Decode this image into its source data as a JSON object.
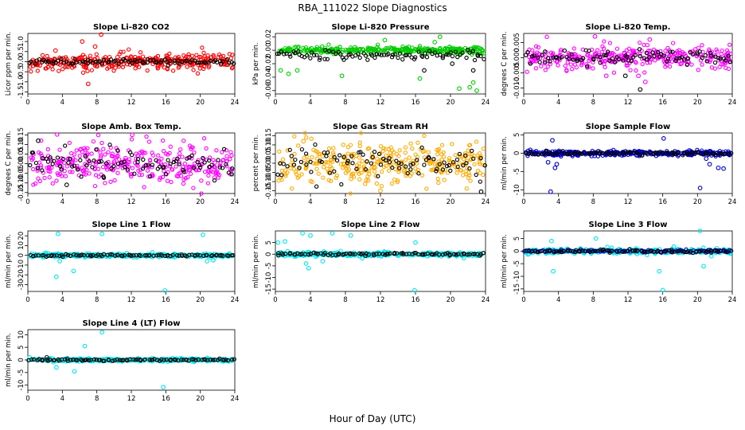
{
  "figure": {
    "title": "RBA_111022  Slope Diagnostics",
    "xlabel": "Hour of Day (UTC)"
  },
  "chart_data": [
    {
      "type": "scatter",
      "title": "Slope Li-820 CO2",
      "ylabel": "Licor ppm per min.",
      "xlim": [
        0,
        24
      ],
      "ylim": [
        -1.6,
        1.4
      ],
      "xticks": [
        0,
        4,
        8,
        12,
        16,
        20,
        24
      ],
      "yticks": [
        -1.5,
        -1.0,
        -0.5,
        0.0,
        0.5,
        1.0
      ],
      "ytick_labels": [
        "-1.5",
        "-1.0",
        "-0.5",
        "0.0",
        "0.5",
        "1.0"
      ],
      "series": [
        {
          "color": "#ff0000",
          "spread": 0.35,
          "center": 0.0,
          "outliers": [
            [
              6.3,
              1.0
            ],
            [
              7.0,
              -1.1
            ],
            [
              8.5,
              1.35
            ],
            [
              7.8,
              0.75
            ],
            [
              3.2,
              0.55
            ]
          ]
        },
        {
          "color": "#000000",
          "spread": 0.1,
          "center": 0.0,
          "outliers": []
        }
      ]
    },
    {
      "type": "scatter",
      "title": "Slope Li-820 Pressure",
      "ylabel": "kPa per min.",
      "xlim": [
        0,
        24
      ],
      "ylim": [
        -0.065,
        0.025
      ],
      "xticks": [
        0,
        4,
        8,
        12,
        16,
        20,
        24
      ],
      "yticks": [
        -0.06,
        -0.04,
        -0.02,
        0.0,
        0.02
      ],
      "ytick_labels": [
        "-0.06",
        "-0.04",
        "-0.02",
        "0.00",
        "0.02"
      ],
      "series": [
        {
          "color": "#00cc00",
          "spread": 0.004,
          "center": 0.0,
          "outliers": [
            [
              0.6,
              -0.03
            ],
            [
              1.5,
              -0.035
            ],
            [
              2.5,
              -0.03
            ],
            [
              7.6,
              -0.038
            ],
            [
              16.5,
              -0.042
            ],
            [
              18.8,
              0.02
            ],
            [
              21.0,
              -0.057
            ],
            [
              22.2,
              -0.055
            ],
            [
              23.0,
              -0.06
            ],
            [
              22.6,
              -0.048
            ],
            [
              18.2,
              0.012
            ],
            [
              12.5,
              0.015
            ]
          ]
        },
        {
          "color": "#000000",
          "spread": 0.006,
          "center": -0.008,
          "outliers": [
            [
              22.6,
              -0.03
            ],
            [
              20.2,
              -0.02
            ],
            [
              17.0,
              -0.03
            ]
          ]
        }
      ]
    },
    {
      "type": "scatter",
      "title": "Slope Li-820 Temp.",
      "ylabel": "degrees C per min.",
      "xlim": [
        0,
        24
      ],
      "ylim": [
        -0.012,
        0.008
      ],
      "xticks": [
        0,
        4,
        8,
        12,
        16,
        20,
        24
      ],
      "yticks": [
        -0.01,
        -0.005,
        0.0,
        0.005
      ],
      "ytick_labels": [
        "-0.010",
        "-0.005",
        "0.000",
        "0.005"
      ],
      "series": [
        {
          "color": "#ff00ff",
          "spread": 0.003,
          "center": 0.0,
          "outliers": [
            [
              8.2,
              0.007
            ],
            [
              9.5,
              -0.006
            ],
            [
              14.0,
              -0.008
            ],
            [
              14.5,
              0.006
            ],
            [
              13.2,
              -0.006
            ]
          ]
        },
        {
          "color": "#000000",
          "spread": 0.002,
          "center": 0.0,
          "outliers": [
            [
              13.4,
              -0.0105
            ],
            [
              11.7,
              -0.006
            ]
          ]
        }
      ]
    },
    {
      "type": "scatter",
      "title": "Slope Amb. Box Temp.",
      "ylabel": "degrees C per min.",
      "xlim": [
        0,
        24
      ],
      "ylim": [
        -0.155,
        0.16
      ],
      "xticks": [
        0,
        4,
        8,
        12,
        16,
        20,
        24
      ],
      "yticks": [
        -0.15,
        -0.1,
        -0.05,
        0.0,
        0.05,
        0.1,
        0.15
      ],
      "ytick_labels": [
        "-0.15",
        "-0.10",
        "-0.05",
        "0.00",
        "0.05",
        "0.10",
        "0.15"
      ],
      "series": [
        {
          "color": "#ff00ff",
          "spread": 0.09,
          "center": 0.0,
          "outliers": [
            [
              12.1,
              0.15
            ]
          ]
        },
        {
          "color": "#000000",
          "spread": 0.06,
          "center": 0.0,
          "outliers": [
            [
              1.2,
              0.12
            ],
            [
              4.5,
              -0.11
            ]
          ]
        }
      ]
    },
    {
      "type": "scatter",
      "title": "Slope Gas Stream RH",
      "ylabel": "percent per min.",
      "xlim": [
        0,
        24
      ],
      "ylim": [
        -0.165,
        0.165
      ],
      "xticks": [
        0,
        4,
        8,
        12,
        16,
        20,
        24
      ],
      "yticks": [
        -0.15,
        -0.1,
        -0.05,
        0.0,
        0.05,
        0.1,
        0.15
      ],
      "ytick_labels": [
        "-0.15",
        "-0.10",
        "-0.05",
        "0.00",
        "0.05",
        "0.10",
        "0.15"
      ],
      "series": [
        {
          "color": "#ffaa00",
          "spread": 0.1,
          "center": 0.0,
          "outliers": [
            [
              3.2,
              0.12
            ],
            [
              12.0,
              -0.15
            ]
          ]
        },
        {
          "color": "#000000",
          "spread": 0.07,
          "center": 0.0,
          "outliers": [
            [
              23.5,
              -0.155
            ]
          ]
        }
      ]
    },
    {
      "type": "scatter",
      "title": "Slope Sample Flow",
      "ylabel": "ml/min per min.",
      "xlim": [
        0,
        24
      ],
      "ylim": [
        -11,
        5.5
      ],
      "xticks": [
        0,
        4,
        8,
        12,
        16,
        20,
        24
      ],
      "yticks": [
        -10,
        -5,
        0,
        5
      ],
      "ytick_labels": [
        "-10",
        "-5",
        "0",
        "5"
      ],
      "series": [
        {
          "color": "#0000cc",
          "spread": 0.6,
          "center": 0.0,
          "outliers": [
            [
              3.1,
              -10.5
            ],
            [
              3.6,
              -4.0
            ],
            [
              3.8,
              -3.0
            ],
            [
              2.8,
              -2.5
            ],
            [
              16.1,
              4.0
            ],
            [
              20.3,
              -9.5
            ],
            [
              21.4,
              -3.0
            ],
            [
              22.4,
              -4.0
            ],
            [
              23.0,
              -4.2
            ],
            [
              21.0,
              -1.5
            ],
            [
              3.3,
              3.5
            ]
          ]
        },
        {
          "color": "#000000",
          "spread": 0.4,
          "center": 0.0,
          "outliers": []
        }
      ]
    },
    {
      "type": "scatter",
      "title": "Slope Line 1 Flow",
      "ylabel": "ml/min per min.",
      "xlim": [
        0,
        24
      ],
      "ylim": [
        -37,
        25
      ],
      "xticks": [
        0,
        4,
        8,
        12,
        16,
        20,
        24
      ],
      "yticks": [
        -30,
        -20,
        -10,
        0,
        10,
        20
      ],
      "ytick_labels": [
        "-30",
        "-20",
        "-10",
        "0",
        "10",
        "20"
      ],
      "series": [
        {
          "color": "#00e5ee",
          "spread": 1.5,
          "center": 0.0,
          "outliers": [
            [
              3.3,
              -22.0
            ],
            [
              3.5,
              22.0
            ],
            [
              5.3,
              -16.0
            ],
            [
              8.6,
              22.0
            ],
            [
              15.9,
              -36.0
            ],
            [
              20.3,
              21.0
            ],
            [
              20.8,
              -6.0
            ],
            [
              21.5,
              -5.0
            ],
            [
              3.7,
              -6.0
            ]
          ]
        },
        {
          "color": "#000000",
          "spread": 0.8,
          "center": 0.0,
          "outliers": []
        }
      ]
    },
    {
      "type": "scatter",
      "title": "Slope Line 2 Flow",
      "ylabel": "ml/min per min.",
      "xlim": [
        0,
        24
      ],
      "ylim": [
        -16,
        10
      ],
      "xticks": [
        0,
        4,
        8,
        12,
        16,
        20,
        24
      ],
      "yticks": [
        -15,
        -10,
        -5,
        0,
        5
      ],
      "ytick_labels": [
        "-15",
        "-10",
        "-5",
        "0",
        "5"
      ],
      "series": [
        {
          "color": "#00e5ee",
          "spread": 0.8,
          "center": 0.0,
          "outliers": [
            [
              0.3,
              5.0
            ],
            [
              1.1,
              5.5
            ],
            [
              3.1,
              9.0
            ],
            [
              3.8,
              -6.0
            ],
            [
              4.0,
              8.0
            ],
            [
              5.4,
              -3.0
            ],
            [
              6.5,
              9.0
            ],
            [
              8.6,
              8.0
            ],
            [
              15.9,
              -15.5
            ],
            [
              16.0,
              5.0
            ],
            [
              3.5,
              -4.0
            ]
          ]
        },
        {
          "color": "#000000",
          "spread": 0.5,
          "center": 0.0,
          "outliers": []
        }
      ]
    },
    {
      "type": "scatter",
      "title": "Slope Line 3 Flow",
      "ylabel": "ml/min per min.",
      "xlim": [
        0,
        24
      ],
      "ylim": [
        -16,
        8
      ],
      "xticks": [
        0,
        4,
        8,
        12,
        16,
        20,
        24
      ],
      "yticks": [
        -15,
        -10,
        -5,
        0,
        5
      ],
      "ytick_labels": [
        "-15",
        "-10",
        "-5",
        "0",
        "5"
      ],
      "series": [
        {
          "color": "#00e5ee",
          "spread": 0.8,
          "center": 0.0,
          "outliers": [
            [
              3.4,
              -8.0
            ],
            [
              3.2,
              4.0
            ],
            [
              8.3,
              5.0
            ],
            [
              15.6,
              -8.0
            ],
            [
              16.0,
              -15.5
            ],
            [
              20.3,
              8.0
            ],
            [
              20.7,
              -6.0
            ],
            [
              21.6,
              -2.0
            ]
          ]
        },
        {
          "color": "#0000cc",
          "spread": 0.4,
          "center": 0.0,
          "outliers": []
        },
        {
          "color": "#000000",
          "spread": 0.4,
          "center": 0.0,
          "outliers": []
        }
      ]
    },
    {
      "type": "scatter",
      "title": "Slope Line 4 (LT) Flow",
      "ylabel": "ml/min per min.",
      "xlim": [
        0,
        24
      ],
      "ylim": [
        -12,
        12
      ],
      "xticks": [
        0,
        4,
        8,
        12,
        16,
        20,
        24
      ],
      "yticks": [
        -10,
        -5,
        0,
        5,
        10
      ],
      "ytick_labels": [
        "-10",
        "-5",
        "0",
        "5",
        "10"
      ],
      "series": [
        {
          "color": "#00e5ee",
          "spread": 0.5,
          "center": 0.0,
          "outliers": [
            [
              3.3,
              -3.0
            ],
            [
              5.4,
              -4.5
            ],
            [
              6.6,
              5.5
            ],
            [
              8.6,
              11.0
            ],
            [
              15.7,
              -10.8
            ],
            [
              0.2,
              1.0
            ]
          ]
        },
        {
          "color": "#000000",
          "spread": 0.3,
          "center": 0.0,
          "outliers": [
            [
              2.2,
              1.0
            ]
          ]
        }
      ]
    }
  ]
}
